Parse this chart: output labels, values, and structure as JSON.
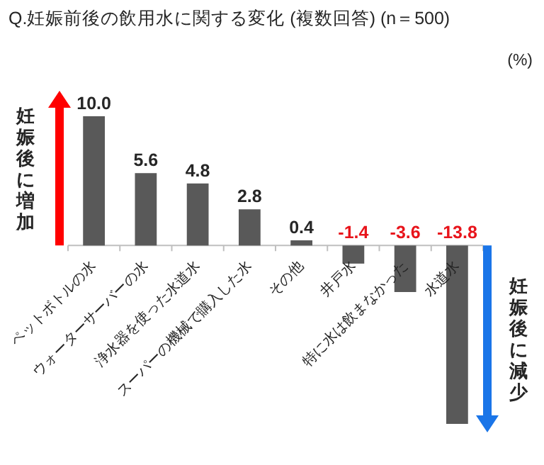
{
  "chart_data": {
    "type": "bar",
    "title": "Q.妊娠前後の飲用水に関する変化 (複数回答) (n＝500)",
    "ylabel": "(%)",
    "categories": [
      "ペットボトルの水",
      "ウォーターサーバーの水",
      "浄水器を使った水道水",
      "スーパーの機械で購入した水",
      "その他",
      "井戸水",
      "特に水は飲まなかった",
      "水道水"
    ],
    "values": [
      10.0,
      5.6,
      4.8,
      2.8,
      0.4,
      -1.4,
      -3.6,
      -13.8
    ],
    "color": "#595959",
    "value_labels": [
      "10.0",
      "5.6",
      "4.8",
      "2.8",
      "0.4",
      "-1.4",
      "-3.6",
      "-13.8"
    ],
    "annotations": [
      "妊娠後に増加",
      "妊娠後に減少"
    ]
  }
}
